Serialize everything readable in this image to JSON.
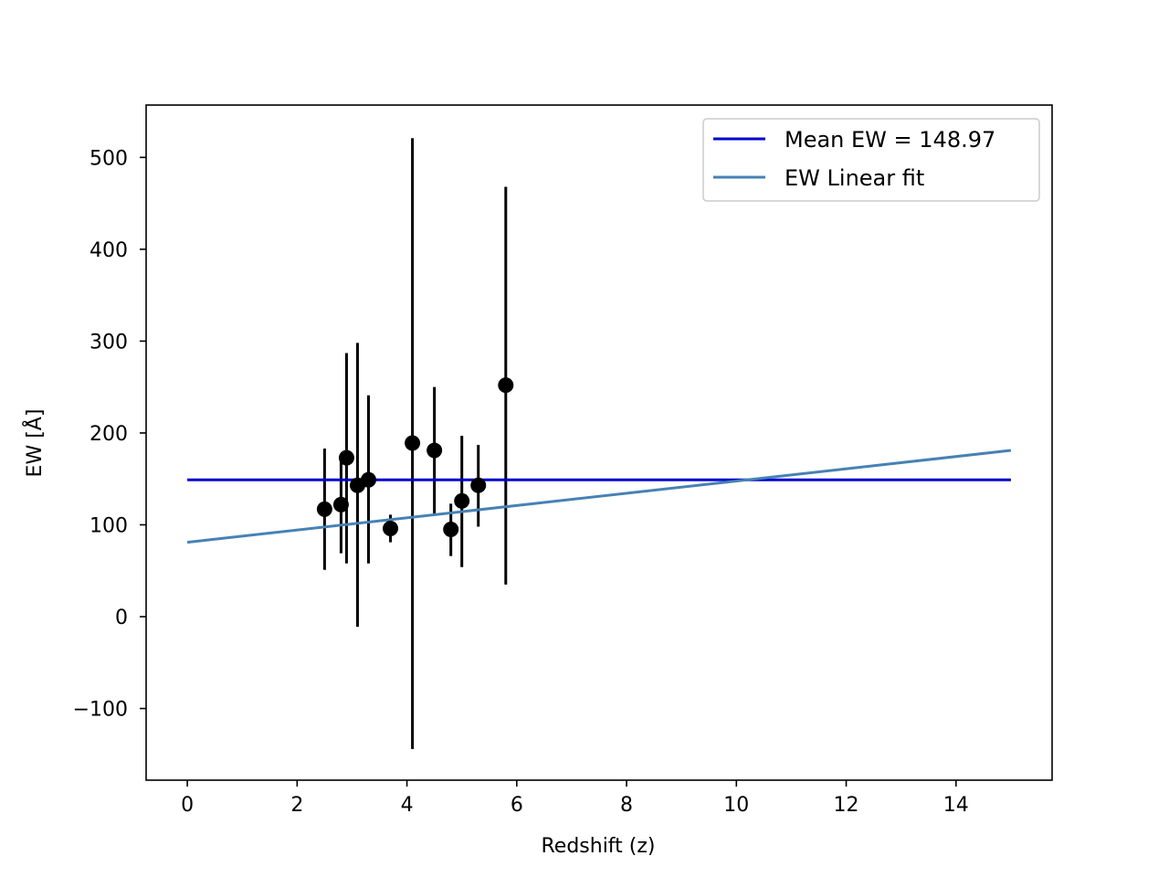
{
  "chart_data": {
    "type": "scatter",
    "title": "",
    "xlabel": "Redshift (z)",
    "ylabel": "EW [Å]",
    "xlim": [
      -0.75,
      15.75
    ],
    "ylim": [
      -178,
      557
    ],
    "xticks": [
      0,
      2,
      4,
      6,
      8,
      10,
      12,
      14
    ],
    "xtick_labels": [
      "0",
      "2",
      "4",
      "6",
      "8",
      "10",
      "12",
      "14"
    ],
    "yticks": [
      -100,
      0,
      100,
      200,
      300,
      400,
      500
    ],
    "ytick_labels": [
      "−100",
      "0",
      "100",
      "200",
      "300",
      "400",
      "500"
    ],
    "grid": false,
    "legend_position": "top-right",
    "points": [
      {
        "x": 2.5,
        "y": 117,
        "yerr_low": 51,
        "yerr_high": 183
      },
      {
        "x": 2.8,
        "y": 122,
        "yerr_low": 69,
        "yerr_high": 175
      },
      {
        "x": 2.9,
        "y": 173,
        "yerr_low": 58,
        "yerr_high": 287
      },
      {
        "x": 3.1,
        "y": 143,
        "yerr_low": -11,
        "yerr_high": 298
      },
      {
        "x": 3.3,
        "y": 149,
        "yerr_low": 58,
        "yerr_high": 241
      },
      {
        "x": 3.7,
        "y": 96,
        "yerr_low": 81,
        "yerr_high": 111
      },
      {
        "x": 4.1,
        "y": 189,
        "yerr_low": -144,
        "yerr_high": 521
      },
      {
        "x": 4.5,
        "y": 181,
        "yerr_low": 112,
        "yerr_high": 250
      },
      {
        "x": 4.8,
        "y": 95,
        "yerr_low": 66,
        "yerr_high": 123
      },
      {
        "x": 5.0,
        "y": 126,
        "yerr_low": 54,
        "yerr_high": 197
      },
      {
        "x": 5.3,
        "y": 143,
        "yerr_low": 98,
        "yerr_high": 187
      },
      {
        "x": 5.8,
        "y": 252,
        "yerr_low": 35,
        "yerr_high": 468
      }
    ],
    "series": [
      {
        "name": "Mean EW = 148.97",
        "kind": "hline",
        "x": [
          0,
          15
        ],
        "y": [
          148.97,
          148.97
        ],
        "color": "#0000cd"
      },
      {
        "name": "EW Linear fit",
        "kind": "line",
        "x": [
          0,
          15
        ],
        "y": [
          81,
          181
        ],
        "color": "#4682b4"
      }
    ],
    "marker_color": "#000000"
  }
}
